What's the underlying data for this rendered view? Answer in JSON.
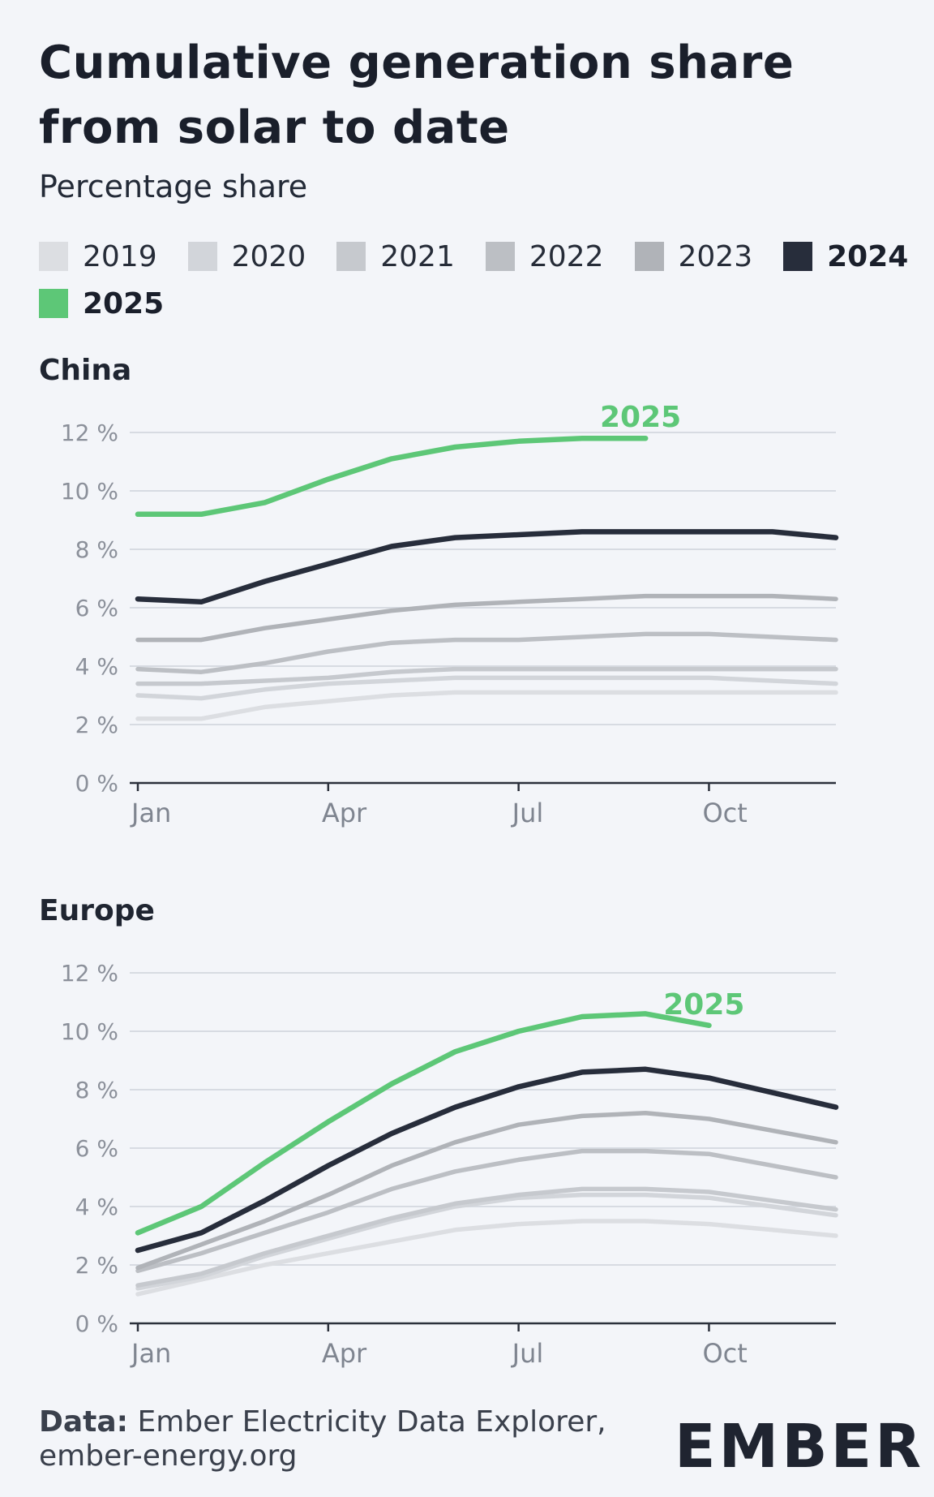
{
  "title": "Cumulative generation share from solar to date",
  "subtitle": "Percentage share",
  "legend": [
    {
      "label": "2019",
      "color": "#dcdee2",
      "bold": false
    },
    {
      "label": "2020",
      "color": "#d2d5da",
      "bold": false
    },
    {
      "label": "2021",
      "color": "#c6c9ce",
      "bold": false
    },
    {
      "label": "2022",
      "color": "#bcbfc4",
      "bold": false
    },
    {
      "label": "2023",
      "color": "#b0b3b8",
      "bold": false
    },
    {
      "label": "2024",
      "color": "#272d3b",
      "bold": true
    },
    {
      "label": "2025",
      "color": "#5dc777",
      "bold": true
    }
  ],
  "source": {
    "prefix": "Data:",
    "text": "Ember Electricity Data Explorer, ember-energy.org"
  },
  "logo": {
    "text": "EMBER",
    "accent_color": "#5dc777"
  },
  "chart_data": [
    {
      "type": "line",
      "title": "China",
      "x": [
        "Jan",
        "Feb",
        "Mar",
        "Apr",
        "May",
        "Jun",
        "Jul",
        "Aug",
        "Sep",
        "Oct",
        "Nov",
        "Dec"
      ],
      "x_ticks": [
        "Jan",
        "Apr",
        "Jul",
        "Oct"
      ],
      "y_ticks": [
        "0 %",
        "2 %",
        "4 %",
        "6 %",
        "8 %",
        "10 %",
        "12 %"
      ],
      "ylim": [
        0,
        12
      ],
      "grid": true,
      "annotation": {
        "series": "2025",
        "text": "2025"
      },
      "series": [
        {
          "name": "2019",
          "values": [
            2.2,
            2.2,
            2.6,
            2.8,
            3.0,
            3.1,
            3.1,
            3.1,
            3.1,
            3.1,
            3.1,
            3.1
          ]
        },
        {
          "name": "2020",
          "values": [
            3.0,
            2.9,
            3.2,
            3.4,
            3.5,
            3.6,
            3.6,
            3.6,
            3.6,
            3.6,
            3.5,
            3.4
          ]
        },
        {
          "name": "2021",
          "values": [
            3.4,
            3.4,
            3.5,
            3.6,
            3.8,
            3.9,
            3.9,
            3.9,
            3.9,
            3.9,
            3.9,
            3.9
          ]
        },
        {
          "name": "2022",
          "values": [
            3.9,
            3.8,
            4.1,
            4.5,
            4.8,
            4.9,
            4.9,
            5.0,
            5.1,
            5.1,
            5.0,
            4.9
          ]
        },
        {
          "name": "2023",
          "values": [
            4.9,
            4.9,
            5.3,
            5.6,
            5.9,
            6.1,
            6.2,
            6.3,
            6.4,
            6.4,
            6.4,
            6.3
          ]
        },
        {
          "name": "2024",
          "values": [
            6.3,
            6.2,
            6.9,
            7.5,
            8.1,
            8.4,
            8.5,
            8.6,
            8.6,
            8.6,
            8.6,
            8.4
          ]
        },
        {
          "name": "2025",
          "values": [
            9.2,
            9.2,
            9.6,
            10.4,
            11.1,
            11.5,
            11.7,
            11.8,
            11.8,
            null,
            null,
            null
          ]
        }
      ]
    },
    {
      "type": "line",
      "title": "Europe",
      "x": [
        "Jan",
        "Feb",
        "Mar",
        "Apr",
        "May",
        "Jun",
        "Jul",
        "Aug",
        "Sep",
        "Oct",
        "Nov",
        "Dec"
      ],
      "x_ticks": [
        "Jan",
        "Apr",
        "Jul",
        "Oct"
      ],
      "y_ticks": [
        "0 %",
        "2 %",
        "4 %",
        "6 %",
        "8 %",
        "10 %",
        "12 %"
      ],
      "ylim": [
        0,
        12
      ],
      "grid": true,
      "annotation": {
        "series": "2025",
        "text": "2025"
      },
      "series": [
        {
          "name": "2019",
          "values": [
            1.0,
            1.5,
            2.0,
            2.4,
            2.8,
            3.2,
            3.4,
            3.5,
            3.5,
            3.4,
            3.2,
            3.0
          ]
        },
        {
          "name": "2020",
          "values": [
            1.2,
            1.6,
            2.3,
            2.9,
            3.5,
            4.0,
            4.3,
            4.4,
            4.4,
            4.3,
            4.0,
            3.7
          ]
        },
        {
          "name": "2021",
          "values": [
            1.3,
            1.7,
            2.4,
            3.0,
            3.6,
            4.1,
            4.4,
            4.6,
            4.6,
            4.5,
            4.2,
            3.9
          ]
        },
        {
          "name": "2022",
          "values": [
            1.8,
            2.4,
            3.1,
            3.8,
            4.6,
            5.2,
            5.6,
            5.9,
            5.9,
            5.8,
            5.4,
            5.0
          ]
        },
        {
          "name": "2023",
          "values": [
            1.9,
            2.7,
            3.5,
            4.4,
            5.4,
            6.2,
            6.8,
            7.1,
            7.2,
            7.0,
            6.6,
            6.2
          ]
        },
        {
          "name": "2024",
          "values": [
            2.5,
            3.1,
            4.2,
            5.4,
            6.5,
            7.4,
            8.1,
            8.6,
            8.7,
            8.4,
            7.9,
            7.4
          ]
        },
        {
          "name": "2025",
          "values": [
            3.1,
            4.0,
            5.5,
            6.9,
            8.2,
            9.3,
            10.0,
            10.5,
            10.6,
            10.2,
            null,
            null
          ]
        }
      ]
    }
  ]
}
